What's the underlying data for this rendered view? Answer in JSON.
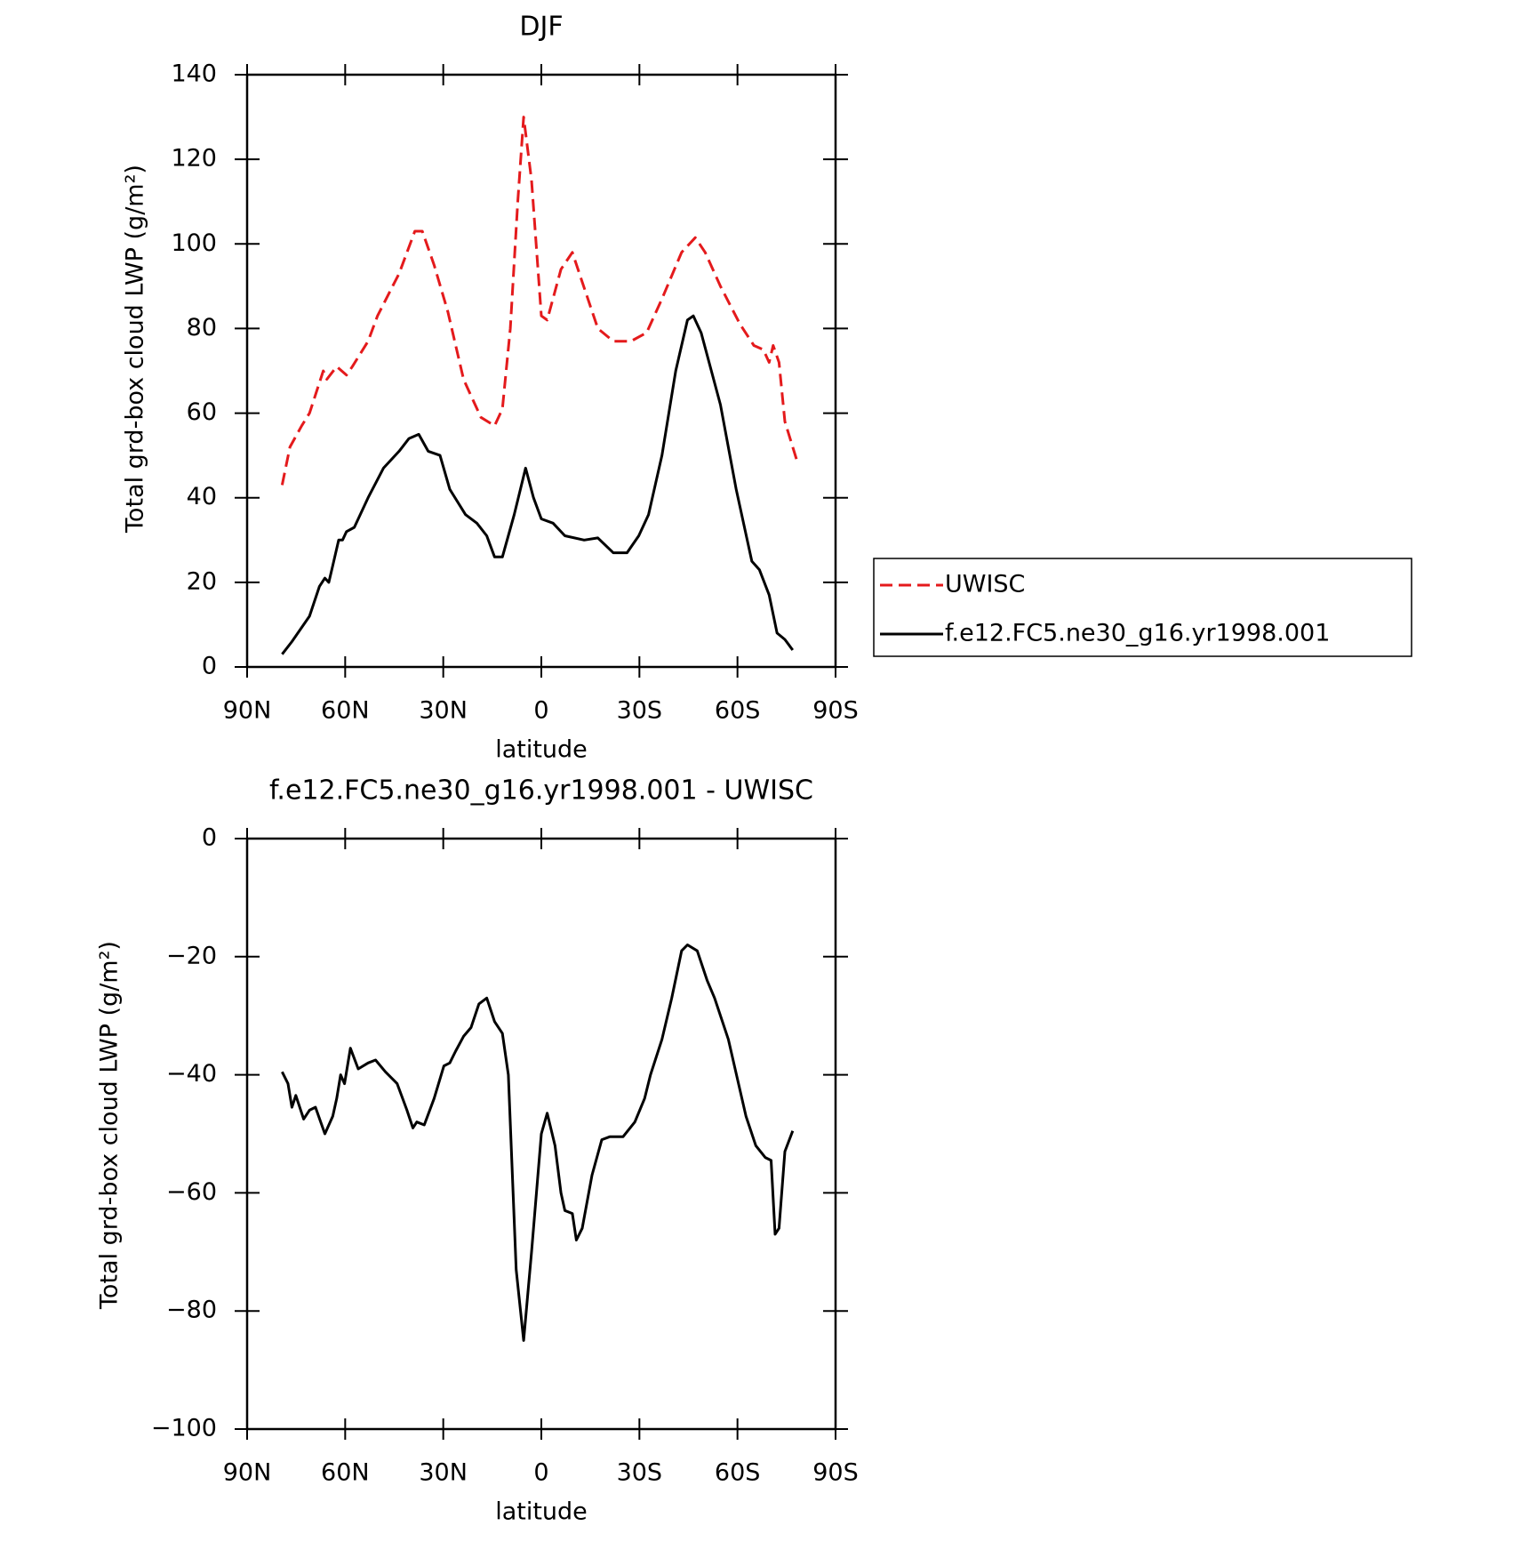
{
  "chart_data": [
    {
      "type": "line",
      "title": "DJF",
      "xlabel": "latitude",
      "ylabel": "Total grd-box cloud LWP (g/m²)",
      "xlim": [
        90,
        -90
      ],
      "xticks": [
        {
          "value": 90,
          "label": "90N"
        },
        {
          "value": 60,
          "label": "60N"
        },
        {
          "value": 30,
          "label": "30N"
        },
        0,
        {
          "value": -30,
          "label": "30S"
        },
        {
          "value": -60,
          "label": "60S"
        },
        {
          "value": -90,
          "label": "90S"
        }
      ],
      "ylim": [
        0,
        140
      ],
      "yticks": [
        0,
        20,
        40,
        60,
        80,
        100,
        120,
        140
      ],
      "legend": "right",
      "series": [
        {
          "name": "UWISC",
          "color": "#e41a1c",
          "linestyle": "dashed",
          "x": [
            79.3,
            76.9,
            73.3,
            70.9,
            66.7,
            65.6,
            62.6,
            59.6,
            57.8,
            53.0,
            50.1,
            43.5,
            38.7,
            36.4,
            32.8,
            28.6,
            23.8,
            18.5,
            14.3,
            11.9,
            9.5,
            7.2,
            5.4,
            3.0,
            0,
            -1.8,
            -6.0,
            -9.5,
            -12.5,
            -17.3,
            -22.0,
            -27.4,
            -32.2,
            -36.9,
            -42.9,
            -47.1,
            -50.1,
            -54.8,
            -60.8,
            -65.0,
            -67.9,
            -69.7,
            -70.9,
            -72.7,
            -74.5,
            -78.1
          ],
          "values": [
            43,
            52,
            57,
            60,
            70,
            68,
            71,
            69,
            71,
            77,
            83,
            93,
            103,
            103,
            95,
            84,
            68,
            59,
            57,
            61,
            80,
            110,
            130,
            115,
            83,
            82,
            94,
            98,
            91,
            80,
            77,
            77,
            79,
            87,
            98,
            101.5,
            98,
            90,
            81,
            76,
            75,
            72,
            76,
            72,
            58,
            49
          ]
        },
        {
          "name": "f.e12.FC5.ne30_g16.yr1998.001",
          "color": "#000000",
          "linestyle": "solid",
          "x": [
            79.3,
            76.3,
            70.9,
            67.9,
            66.2,
            65.0,
            63.8,
            62.0,
            60.8,
            59.6,
            57.2,
            53.0,
            48.3,
            43.5,
            40.5,
            37.5,
            34.6,
            31.0,
            28.0,
            23.2,
            19.7,
            16.7,
            14.3,
            11.9,
            8.3,
            4.8,
            2.4,
            0,
            -3.6,
            -7.2,
            -13.1,
            -17.3,
            -22.0,
            -26.2,
            -29.8,
            -32.8,
            -36.9,
            -41.1,
            -44.7,
            -46.5,
            -48.9,
            -54.8,
            -59.6,
            -64.4,
            -66.7,
            -69.7,
            -72.1,
            -74.5,
            -76.9
          ],
          "values": [
            3,
            6,
            12,
            19,
            21,
            20,
            24,
            30,
            30,
            32,
            33,
            40,
            47,
            51,
            54,
            55,
            51,
            50,
            42,
            36,
            34,
            31,
            26,
            26,
            36,
            47,
            40,
            35,
            34,
            31,
            30,
            30.5,
            27,
            27,
            31,
            36,
            50,
            70,
            82,
            83,
            79,
            62,
            42,
            25,
            23,
            17,
            8,
            6.5,
            4
          ]
        }
      ]
    },
    {
      "type": "line",
      "title": "f.e12.FC5.ne30_g16.yr1998.001 - UWISC",
      "xlabel": "latitude",
      "ylabel": "Total grd-box cloud LWP (g/m²)",
      "xlim": [
        90,
        -90
      ],
      "xticks": [
        {
          "value": 90,
          "label": "90N"
        },
        {
          "value": 60,
          "label": "60N"
        },
        {
          "value": 30,
          "label": "30N"
        },
        0,
        {
          "value": -30,
          "label": "30S"
        },
        {
          "value": -60,
          "label": "60S"
        },
        {
          "value": -90,
          "label": "90S"
        }
      ],
      "ylim": [
        -100,
        0
      ],
      "yticks": [
        {
          "value": -100,
          "label": "−100"
        },
        {
          "value": -80,
          "label": "−80"
        },
        {
          "value": -60,
          "label": "−60"
        },
        {
          "value": -40,
          "label": "−40"
        },
        {
          "value": -20,
          "label": "−20"
        },
        0
      ],
      "series": [
        {
          "color": "#000000",
          "linestyle": "solid",
          "x": [
            79.3,
            77.5,
            76.3,
            75.1,
            72.7,
            70.9,
            69.1,
            66.2,
            63.8,
            62.6,
            61.4,
            60.2,
            58.4,
            56.0,
            53.0,
            50.7,
            47.7,
            44.1,
            41.1,
            39.3,
            38.1,
            35.8,
            32.8,
            29.8,
            28.0,
            26.2,
            23.8,
            21.5,
            19.1,
            16.7,
            14.3,
            11.9,
            10.1,
            7.7,
            5.4,
            3.0,
            0,
            -1.8,
            -4.2,
            -6.0,
            -7.2,
            -9.5,
            -10.7,
            -12.5,
            -15.5,
            -18.5,
            -20.9,
            -25.0,
            -28.6,
            -31.6,
            -33.4,
            -36.9,
            -39.9,
            -42.9,
            -44.7,
            -47.7,
            -50.7,
            -53.0,
            -57.2,
            -62.6,
            -65.6,
            -68.5,
            -70.3,
            -71.5,
            -72.7,
            -74.5,
            -76.9
          ],
          "values": [
            -39.5,
            -41.5,
            -45.5,
            -43.5,
            -47.5,
            -46,
            -45.5,
            -50,
            -47,
            -44,
            -40,
            -41.5,
            -35.5,
            -39,
            -38,
            -37.5,
            -39.5,
            -41.5,
            -46,
            -49,
            -48,
            -48.5,
            -44,
            -38.5,
            -38,
            -36,
            -33.5,
            -32,
            -28,
            -27,
            -31,
            -33,
            -40,
            -73,
            -85,
            -70,
            -50,
            -46.5,
            -52,
            -60,
            -63,
            -63.5,
            -68,
            -66,
            -57,
            -51,
            -50.5,
            -50.5,
            -48,
            -44,
            -40,
            -34,
            -27,
            -19,
            -18,
            -19,
            -24,
            -27,
            -34,
            -47,
            -52,
            -54,
            -54.5,
            -67,
            -66,
            -53,
            -49.5
          ]
        }
      ]
    }
  ]
}
